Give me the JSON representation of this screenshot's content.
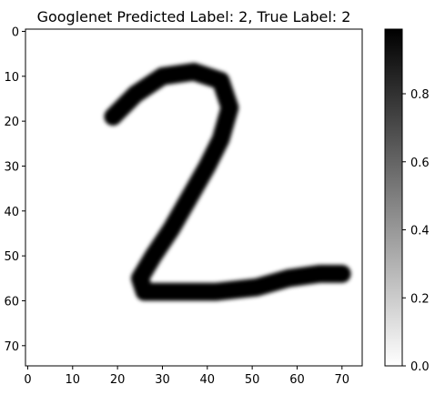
{
  "chart_data": {
    "type": "heatmap",
    "title": "Googlenet Predicted Label: 2, True Label: 2",
    "xlabel": "",
    "ylabel": "",
    "xlim": [
      -0.5,
      74.5
    ],
    "ylim": [
      74.5,
      -0.5
    ],
    "x_ticks": [
      0,
      10,
      20,
      30,
      40,
      50,
      60,
      70
    ],
    "y_ticks": [
      0,
      10,
      20,
      30,
      40,
      50,
      60,
      70
    ],
    "x_tick_labels": [
      "0",
      "10",
      "20",
      "30",
      "40",
      "50",
      "60",
      "70"
    ],
    "y_tick_labels": [
      "0",
      "10",
      "20",
      "30",
      "40",
      "50",
      "60",
      "70"
    ],
    "image_shape": [
      75,
      75
    ],
    "colormap": "gray_r",
    "value_range": [
      0.0,
      0.99
    ],
    "colorbar_ticks": [
      0.0,
      0.2,
      0.4,
      0.6,
      0.8
    ],
    "colorbar_tick_labels": [
      "0.0",
      "0.2",
      "0.4",
      "0.6",
      "0.8"
    ],
    "content_description": "Handwritten digit 2: top loop from about (19,20) curving through (38,9) to (44,22), diagonal stroke down-left to (24,55), bottom stroke right to about (70,54)",
    "stroke_path": [
      [
        19,
        19
      ],
      [
        24,
        14
      ],
      [
        30,
        10
      ],
      [
        37,
        9
      ],
      [
        43,
        11
      ],
      [
        45,
        17
      ],
      [
        43,
        24
      ],
      [
        40,
        30
      ],
      [
        36,
        37
      ],
      [
        32,
        44
      ],
      [
        28,
        50
      ],
      [
        25,
        55
      ],
      [
        26,
        58
      ],
      [
        33,
        58
      ],
      [
        42,
        58
      ],
      [
        51,
        57
      ],
      [
        58,
        55
      ],
      [
        65,
        54
      ],
      [
        70,
        54
      ]
    ],
    "stroke_width": 4.0
  }
}
